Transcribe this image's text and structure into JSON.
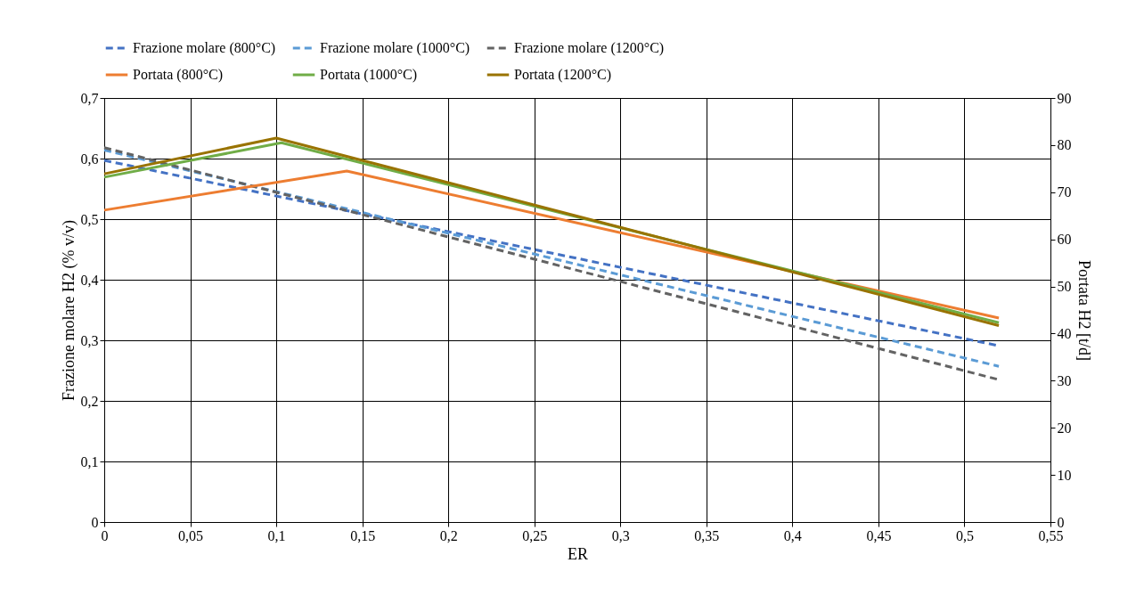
{
  "chart_data": {
    "type": "line",
    "xlabel": "ER",
    "ylabel": "Frazione molare H2 (% v/v)",
    "y2label": "Portata H2 [t/d]",
    "xlim": [
      0,
      0.55
    ],
    "xticks": [
      0,
      {
        "value": 0.05,
        "label": "0,05"
      },
      {
        "value": 0.1,
        "label": "0,1"
      },
      {
        "value": 0.15,
        "label": "0,15"
      },
      {
        "value": 0.2,
        "label": "0,2"
      },
      {
        "value": 0.25,
        "label": "0,25"
      },
      {
        "value": 0.3,
        "label": "0,3"
      },
      {
        "value": 0.35,
        "label": "0,35"
      },
      {
        "value": 0.4,
        "label": "0,4"
      },
      {
        "value": 0.45,
        "label": "0,45"
      },
      {
        "value": 0.5,
        "label": "0,5"
      },
      {
        "value": 0.55,
        "label": "0,55"
      }
    ],
    "ylim": [
      0,
      0.7
    ],
    "yticks": [
      0,
      {
        "value": 0.1,
        "label": "0,1"
      },
      {
        "value": 0.2,
        "label": "0,2"
      },
      {
        "value": 0.3,
        "label": "0,3"
      },
      {
        "value": 0.4,
        "label": "0,4"
      },
      {
        "value": 0.5,
        "label": "0,5"
      },
      {
        "value": 0.6,
        "label": "0,6"
      },
      {
        "value": 0.7,
        "label": "0,7"
      }
    ],
    "y2lim": [
      0,
      90
    ],
    "y2ticks": [
      0,
      10,
      20,
      30,
      40,
      50,
      60,
      70,
      80,
      90
    ],
    "grid": true,
    "legend": "top",
    "series": [
      {
        "name": "Frazione molare (800°C)",
        "color": "#4472c4",
        "line_style": "dashed",
        "x": [
          0,
          0.52
        ],
        "values": [
          0.597,
          0.291
        ]
      },
      {
        "name": "Frazione molare (1000°C)",
        "color": "#5b9bd5",
        "line_style": "dashed",
        "x": [
          0,
          0.52
        ],
        "values": [
          0.614,
          0.257
        ]
      },
      {
        "name": "Frazione molare (1200°C)",
        "color": "#636363",
        "line_style": "dashed",
        "x": [
          0,
          0.52
        ],
        "values": [
          0.618,
          0.235
        ]
      },
      {
        "name": "Portata (800°C)",
        "color": "#ed7d31",
        "line_style": "solid",
        "axis": "y2",
        "x": [
          0,
          0.141,
          0.52
        ],
        "values": [
          66.2,
          74.5,
          43.3
        ]
      },
      {
        "name": "Portata (1000°C)",
        "color": "#70ad47",
        "line_style": "solid",
        "axis": "y2",
        "x": [
          0,
          0.103,
          0.52
        ],
        "values": [
          73.2,
          80.5,
          42.3
        ]
      },
      {
        "name": "Portata (1200°C)",
        "color": "#997300",
        "line_style": "solid",
        "axis": "y2",
        "x": [
          0,
          0.1,
          0.52
        ],
        "values": [
          73.9,
          81.5,
          41.7
        ]
      }
    ]
  }
}
